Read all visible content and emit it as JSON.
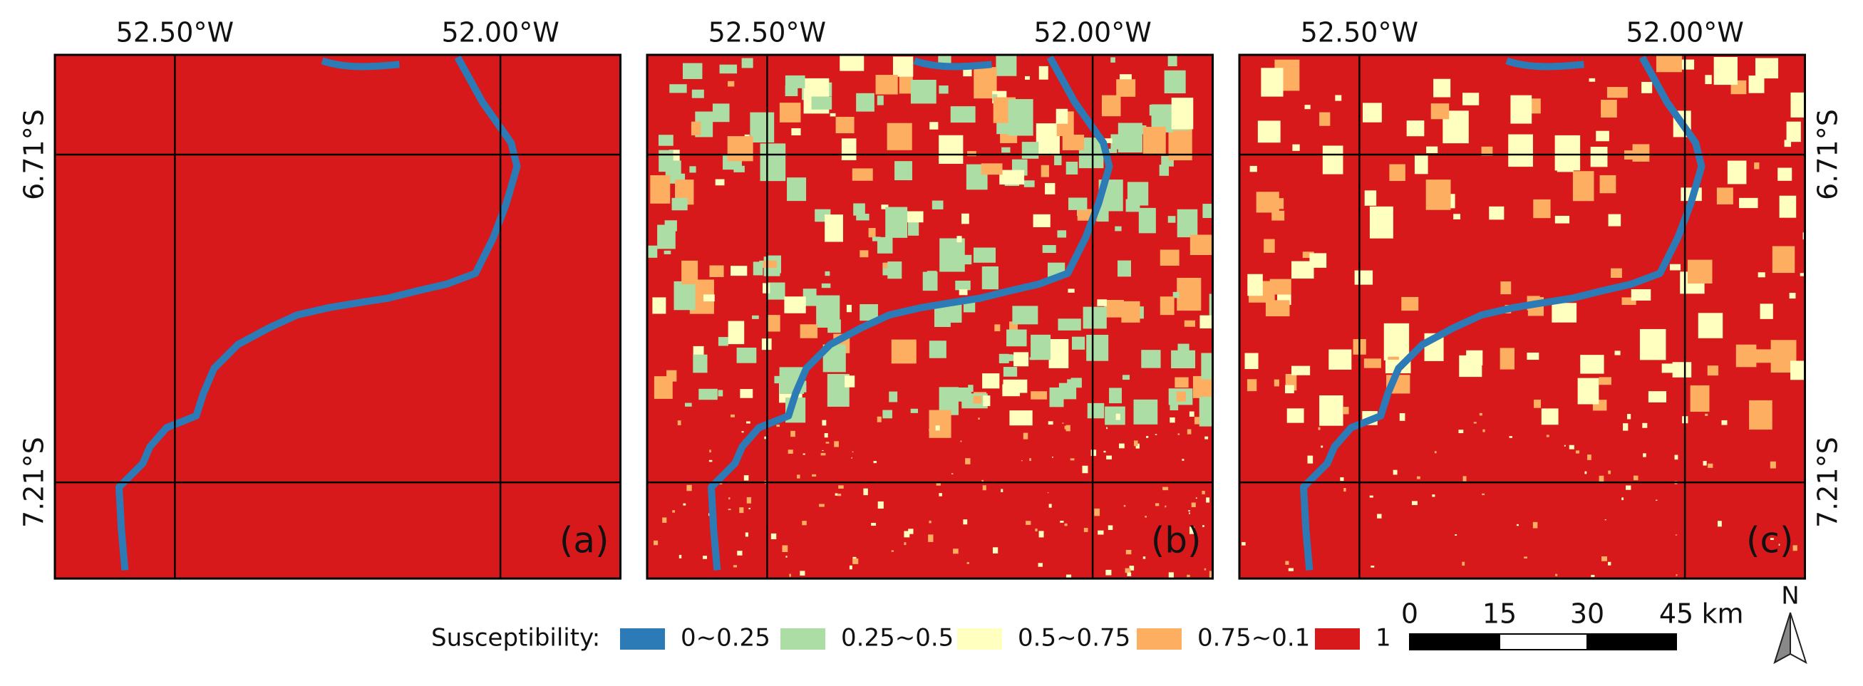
{
  "panels": [
    {
      "label": "(a)"
    },
    {
      "label": "(b)"
    },
    {
      "label": "(c)"
    }
  ],
  "longitude_labels": [
    "52.50°W",
    "52.00°W"
  ],
  "latitude_labels": [
    "6.71°S",
    "7.21°S"
  ],
  "legend": {
    "title": "Susceptibility:",
    "items": [
      {
        "label": "0~0.25",
        "color": "#2c7bb6"
      },
      {
        "label": "0.25~0.5",
        "color": "#abdda4"
      },
      {
        "label": "0.5~0.75",
        "color": "#ffffbf"
      },
      {
        "label": "0.75~0.1",
        "color": "#fdae61"
      },
      {
        "label": "1",
        "color": "#d7191c"
      }
    ]
  },
  "scale_bar": {
    "labels": [
      "0",
      "15",
      "30",
      "45"
    ],
    "unit": "km"
  },
  "north_arrow": "N"
}
